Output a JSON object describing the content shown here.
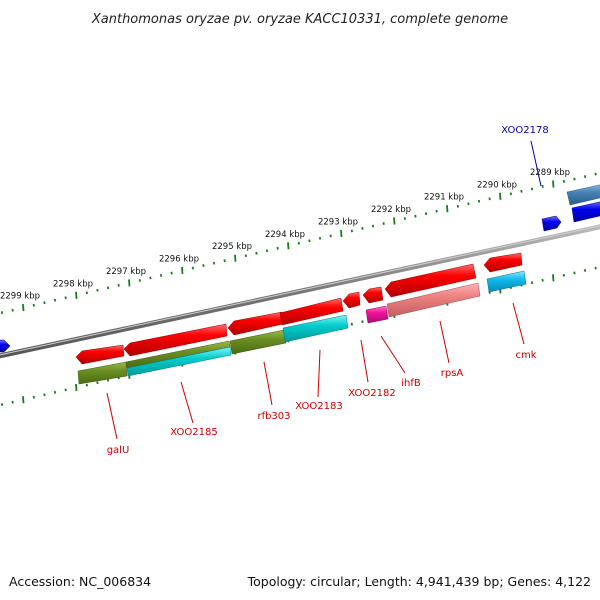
{
  "title": "Xanthomonas oryzae pv. oryzae KACC10331, complete genome",
  "accession": "Accession: NC_006834",
  "topology": "Topology: circular; Length: 4,941,439 bp; Genes: 4,122",
  "colors": {
    "backbone": "#808080",
    "tick": "#1a7a1a",
    "forward_gene": "#0000ee",
    "reverse_gene": "#ee0000",
    "reverse_label": "#cc0000",
    "forward_label": "#0000aa",
    "feature_olive": "#6b8e23",
    "feature_cyan": "#00cccc",
    "feature_magenta": "#ee1199",
    "feature_salmon": "#ee8080",
    "feature_steel": "#4682b4",
    "feature_sky": "#11bbee"
  },
  "scale": {
    "unit": "kbp",
    "ticks": [
      {
        "label": "2289 kbp"
      },
      {
        "label": "2290 kbp"
      },
      {
        "label": "2291 kbp"
      },
      {
        "label": "2292 kbp"
      },
      {
        "label": "2293 kbp"
      },
      {
        "label": "2294 kbp"
      },
      {
        "label": "2295 kbp"
      },
      {
        "label": "2296 kbp"
      },
      {
        "label": "2297 kbp"
      },
      {
        "label": "2298 kbp"
      },
      {
        "label": "2299 kbp"
      }
    ]
  },
  "genes": [
    {
      "id": "galU",
      "label": "galU",
      "strand": "reverse"
    },
    {
      "id": "XOO2185",
      "label": "XOO2185",
      "strand": "reverse"
    },
    {
      "id": "rfb303",
      "label": "rfb303",
      "strand": "reverse"
    },
    {
      "id": "XOO2183",
      "label": "XOO2183",
      "strand": "reverse"
    },
    {
      "id": "XOO2182",
      "label": "XOO2182",
      "strand": "reverse"
    },
    {
      "id": "ihfB",
      "label": "ihfB",
      "strand": "reverse"
    },
    {
      "id": "rpsA",
      "label": "rpsA",
      "strand": "reverse"
    },
    {
      "id": "cmk",
      "label": "cmk",
      "strand": "reverse"
    },
    {
      "id": "XOO2178",
      "label": "XOO2178",
      "strand": "forward"
    }
  ]
}
